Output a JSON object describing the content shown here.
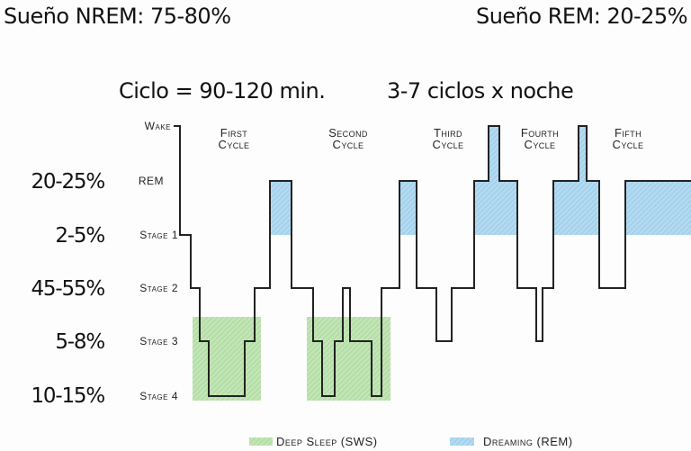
{
  "header": {
    "nrem": "Sueño NREM: 75-80%",
    "rem": "Sueño REM: 20-25%",
    "cycle_length": "Ciclo = 90-120 min.",
    "cycles_per_night": "3-7 ciclos x noche"
  },
  "stages": [
    {
      "label": "Wake",
      "percent": ""
    },
    {
      "label": "REM",
      "percent": "20-25%"
    },
    {
      "label": "Stage 1",
      "percent": "2-5%"
    },
    {
      "label": "Stage 2",
      "percent": "45-55%"
    },
    {
      "label": "Stage 3",
      "percent": "5-8%"
    },
    {
      "label": "Stage 4",
      "percent": "10-15%"
    }
  ],
  "cycles": [
    {
      "line1": "First",
      "line2": "Cycle"
    },
    {
      "line1": "Second",
      "line2": "Cycle"
    },
    {
      "line1": "Third",
      "line2": "Cycle"
    },
    {
      "line1": "Fourth",
      "line2": "Cycle"
    },
    {
      "line1": "Fifth",
      "line2": "Cycle"
    }
  ],
  "legend": {
    "deep_sleep": "Deep Sleep (SWS)",
    "dreaming": "Dreaming (REM)"
  },
  "colors": {
    "deep_sleep": "#a8d89a",
    "dreaming": "#9fcdea",
    "line": "#222222"
  }
}
